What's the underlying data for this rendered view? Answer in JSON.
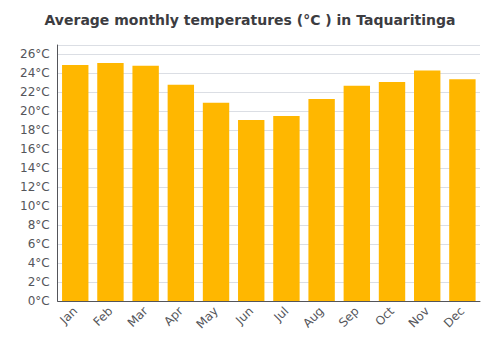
{
  "chart_data": {
    "type": "bar",
    "title": "Average monthly temperatures (°C ) in Taquaritinga",
    "categories": [
      "Jan",
      "Feb",
      "Mar",
      "Apr",
      "May",
      "Jun",
      "Jul",
      "Aug",
      "Sep",
      "Oct",
      "Nov",
      "Dec"
    ],
    "values": [
      24.9,
      25.1,
      24.8,
      22.8,
      20.9,
      19.1,
      19.5,
      21.3,
      22.7,
      23.1,
      24.3,
      23.4
    ],
    "color": "#FFB700",
    "ylim": [
      0,
      27
    ],
    "yticks": [
      {
        "value": 0,
        "label": "0°C"
      },
      {
        "value": 2,
        "label": "2°C"
      },
      {
        "value": 4,
        "label": "4°C"
      },
      {
        "value": 6,
        "label": "6°C"
      },
      {
        "value": 8,
        "label": "8°C"
      },
      {
        "value": 10,
        "label": "10°C"
      },
      {
        "value": 12,
        "label": "12°C"
      },
      {
        "value": 14,
        "label": "14°C"
      },
      {
        "value": 16,
        "label": "16°C"
      },
      {
        "value": 18,
        "label": "18°C"
      },
      {
        "value": 20,
        "label": "20°C"
      },
      {
        "value": 22,
        "label": "22°C"
      },
      {
        "value": 24,
        "label": "24°C"
      },
      {
        "value": 26,
        "label": "26°C"
      }
    ],
    "grid": true
  }
}
